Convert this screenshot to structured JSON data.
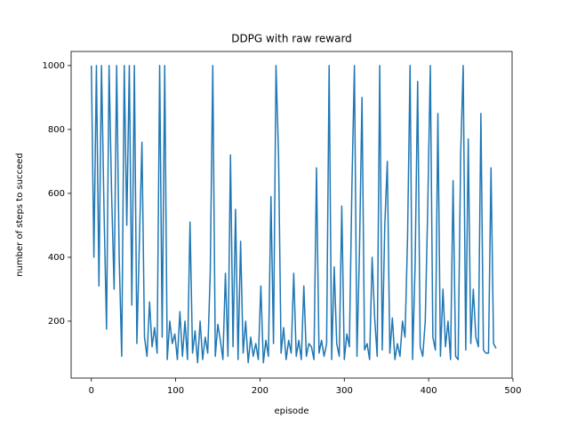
{
  "chart_data": {
    "type": "line",
    "title": "DDPG with raw reward",
    "xlabel": "episode",
    "ylabel": "number of steps to succeed",
    "x": [
      0,
      3,
      6,
      9,
      12,
      15,
      18,
      21,
      24,
      27,
      30,
      33,
      36,
      39,
      42,
      45,
      48,
      51,
      54,
      57,
      60,
      63,
      66,
      69,
      72,
      75,
      78,
      81,
      84,
      87,
      90,
      93,
      96,
      99,
      102,
      105,
      108,
      111,
      114,
      117,
      120,
      123,
      126,
      129,
      132,
      135,
      138,
      141,
      144,
      147,
      150,
      153,
      156,
      159,
      162,
      165,
      168,
      171,
      174,
      177,
      180,
      183,
      186,
      189,
      192,
      195,
      198,
      201,
      204,
      207,
      210,
      213,
      216,
      219,
      222,
      225,
      228,
      231,
      234,
      237,
      240,
      243,
      246,
      249,
      252,
      255,
      258,
      261,
      264,
      267,
      270,
      273,
      276,
      279,
      282,
      285,
      288,
      291,
      294,
      297,
      300,
      303,
      306,
      309,
      312,
      315,
      318,
      321,
      324,
      327,
      330,
      333,
      336,
      339,
      342,
      345,
      348,
      351,
      354,
      357,
      360,
      363,
      366,
      369,
      372,
      375,
      378,
      381,
      384,
      387,
      390,
      393,
      396,
      399,
      402,
      405,
      408,
      411,
      414,
      417,
      420,
      423,
      426,
      429,
      432,
      435,
      438,
      441,
      444,
      447,
      450,
      453,
      456,
      459,
      462,
      465,
      468,
      471,
      474,
      477,
      480
    ],
    "series": [
      {
        "color": "#1f77b4",
        "values": [
          1000,
          400,
          1000,
          310,
          1000,
          550,
          175,
          1000,
          600,
          300,
          1000,
          400,
          90,
          1000,
          500,
          1000,
          250,
          1000,
          130,
          450,
          760,
          150,
          90,
          260,
          120,
          180,
          100,
          1000,
          150,
          1000,
          80,
          200,
          130,
          160,
          80,
          230,
          90,
          200,
          80,
          510,
          100,
          170,
          70,
          200,
          80,
          150,
          100,
          350,
          1000,
          90,
          190,
          140,
          80,
          350,
          90,
          720,
          120,
          550,
          80,
          450,
          100,
          200,
          70,
          150,
          90,
          130,
          80,
          310,
          70,
          140,
          90,
          590,
          130,
          1000,
          720,
          100,
          180,
          80,
          140,
          100,
          350,
          90,
          140,
          80,
          310,
          90,
          130,
          120,
          80,
          680,
          100,
          140,
          90,
          130,
          1000,
          80,
          370,
          130,
          90,
          560,
          80,
          160,
          120,
          620,
          1000,
          90,
          420,
          900,
          110,
          130,
          80,
          400,
          210,
          90,
          1000,
          110,
          500,
          700,
          100,
          210,
          80,
          130,
          90,
          200,
          150,
          460,
          1000,
          80,
          380,
          950,
          120,
          90,
          200,
          560,
          1000,
          150,
          110,
          850,
          90,
          300,
          120,
          200,
          80,
          640,
          90,
          80,
          720,
          1000,
          110,
          770,
          130,
          300,
          150,
          120,
          850,
          110,
          100,
          100,
          680,
          130,
          115
        ]
      }
    ],
    "xlim": [
      -24,
      499
    ],
    "ylim": [
      22,
      1044
    ],
    "xticks": [
      0,
      100,
      200,
      300,
      400,
      500
    ],
    "yticks": [
      200,
      400,
      600,
      800,
      1000
    ]
  }
}
